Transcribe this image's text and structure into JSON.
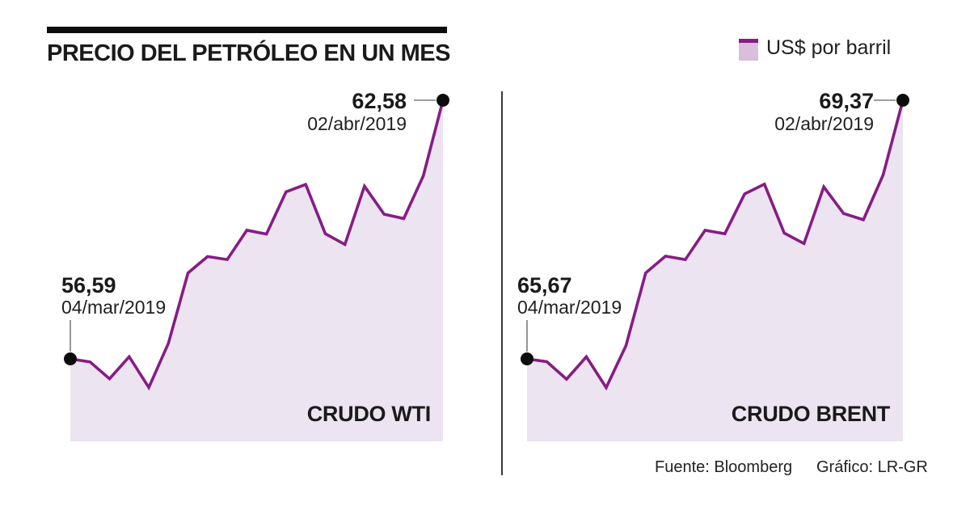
{
  "header": {
    "title": "PRECIO DEL PETRÓLEO EN UN MES"
  },
  "legend": {
    "label": "US$ por barril",
    "swatch_fill": "#d9bfdc",
    "swatch_border": "#871c84"
  },
  "colors": {
    "line": "#871c84",
    "area": "#ece4f1",
    "dot": "#0d0d0d",
    "pointer": "#7d7d7d"
  },
  "footer": {
    "source": "Fuente: Bloomberg",
    "credit": "Gráfico: LR-GR"
  },
  "chart_data": [
    {
      "type": "area",
      "name": "CRUDO WTI",
      "unit": "US$ por barril",
      "start_label": {
        "value": "56,59",
        "date": "04/mar/2019"
      },
      "end_label": {
        "value": "62,58",
        "date": "02/abr/2019"
      },
      "x_range": [
        "04/mar/2019",
        "02/abr/2019"
      ],
      "ylim": [
        55.5,
        63
      ],
      "values": [
        56.59,
        56.52,
        56.13,
        56.64,
        55.93,
        56.95,
        58.58,
        58.96,
        58.89,
        59.57,
        59.48,
        60.46,
        60.63,
        59.49,
        59.24,
        60.59,
        59.94,
        59.84,
        60.83,
        62.58
      ]
    },
    {
      "type": "area",
      "name": "CRUDO BRENT",
      "unit": "US$ por barril",
      "start_label": {
        "value": "65,67",
        "date": "04/mar/2019"
      },
      "end_label": {
        "value": "69,37",
        "date": "02/abr/2019"
      },
      "x_range": [
        "04/mar/2019",
        "02/abr/2019"
      ],
      "ylim": [
        64.8,
        70
      ],
      "values": [
        65.67,
        65.63,
        65.38,
        65.7,
        65.26,
        65.86,
        66.9,
        67.14,
        67.09,
        67.51,
        67.46,
        68.03,
        68.17,
        67.47,
        67.32,
        68.13,
        67.75,
        67.66,
        68.3,
        69.37
      ]
    }
  ]
}
